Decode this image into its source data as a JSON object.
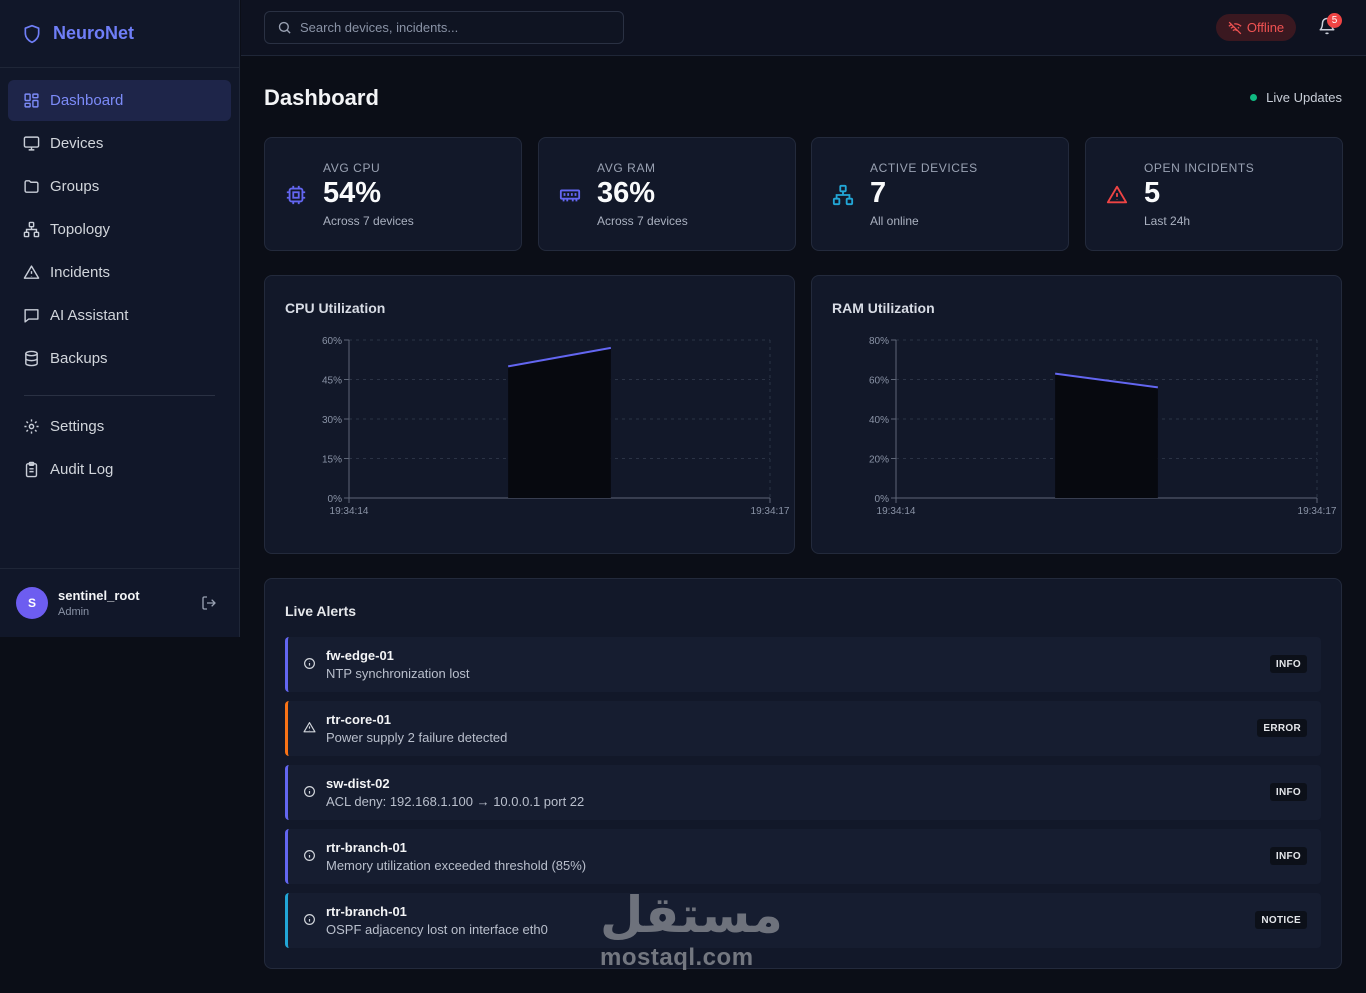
{
  "app": {
    "name": "NeuroNet"
  },
  "sidebar": {
    "items": [
      {
        "label": "Dashboard",
        "icon": "dashboard-icon"
      },
      {
        "label": "Devices",
        "icon": "monitor-icon"
      },
      {
        "label": "Groups",
        "icon": "folder-icon"
      },
      {
        "label": "Topology",
        "icon": "network-icon"
      },
      {
        "label": "Incidents",
        "icon": "alert-triangle-icon"
      },
      {
        "label": "AI Assistant",
        "icon": "chat-icon"
      },
      {
        "label": "Backups",
        "icon": "database-icon"
      }
    ],
    "bottom_items": [
      {
        "label": "Settings",
        "icon": "gear-icon"
      },
      {
        "label": "Audit Log",
        "icon": "clipboard-icon"
      }
    ],
    "user": {
      "initial": "S",
      "name": "sentinel_root",
      "role": "Admin"
    }
  },
  "topbar": {
    "search_placeholder": "Search devices, incidents...",
    "status": "Offline",
    "notifications": "5"
  },
  "page": {
    "title": "Dashboard",
    "live_label": "Live Updates"
  },
  "stats": [
    {
      "label": "AVG CPU",
      "value": "54%",
      "sub": "Across 7 devices",
      "color": "#6366f1"
    },
    {
      "label": "AVG RAM",
      "value": "36%",
      "sub": "Across 7 devices",
      "color": "#6366f1"
    },
    {
      "label": "ACTIVE DEVICES",
      "value": "7",
      "sub": "All online",
      "color": "#22a6d6"
    },
    {
      "label": "OPEN INCIDENTS",
      "value": "5",
      "sub": "Last 24h",
      "color": "#ef4444"
    }
  ],
  "chart_data": [
    {
      "type": "line",
      "title": "CPU Utilization",
      "x": [
        "19:34:15",
        "19:34:16"
      ],
      "x_ticks": [
        "19:34:14",
        "19:34:17"
      ],
      "values": [
        50,
        57
      ],
      "y_ticks": [
        "0%",
        "15%",
        "30%",
        "45%",
        "60%"
      ],
      "ylim": [
        0,
        60
      ],
      "grid": true,
      "color": "#6366f1"
    },
    {
      "type": "line",
      "title": "RAM Utilization",
      "x": [
        "19:34:15",
        "19:34:16"
      ],
      "x_ticks": [
        "19:34:14",
        "19:34:17"
      ],
      "values": [
        63,
        56
      ],
      "y_ticks": [
        "0%",
        "20%",
        "40%",
        "60%",
        "80%"
      ],
      "ylim": [
        0,
        80
      ],
      "grid": true,
      "color": "#6366f1"
    }
  ],
  "alerts": {
    "title": "Live Alerts",
    "items": [
      {
        "device": "fw-edge-01",
        "message": "NTP synchronization lost",
        "level": "INFO",
        "color": "#6366f1",
        "icon": "info-icon"
      },
      {
        "device": "rtr-core-01",
        "message": "Power supply 2 failure detected",
        "level": "ERROR",
        "color": "#f97316",
        "icon": "warning-icon"
      },
      {
        "device": "sw-dist-02",
        "message": "ACL deny: 192.168.1.100 → 10.0.0.1 port 22",
        "level": "INFO",
        "color": "#6366f1",
        "icon": "info-icon"
      },
      {
        "device": "rtr-branch-01",
        "message": "Memory utilization exceeded threshold (85%)",
        "level": "INFO",
        "color": "#6366f1",
        "icon": "info-icon"
      },
      {
        "device": "rtr-branch-01",
        "message": "OSPF adjacency lost on interface eth0",
        "level": "NOTICE",
        "color": "#22a6d6",
        "icon": "info-icon"
      }
    ]
  },
  "watermark": {
    "arabic": "مستقل",
    "latin": "mostaql.com"
  }
}
